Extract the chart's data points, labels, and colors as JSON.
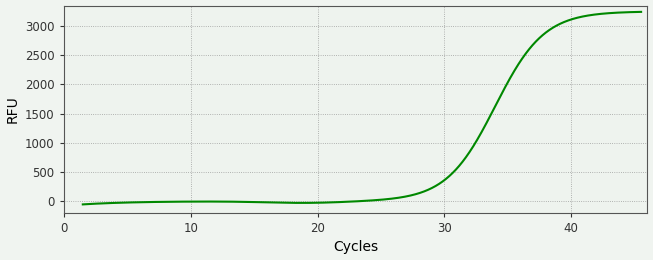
{
  "title": "",
  "xlabel": "Cycles",
  "ylabel": "RFU",
  "line_color": "#008800",
  "background_color": "#f0f4f0",
  "plot_background_color": "#eef3ee",
  "grid_color": "#888888",
  "xlim": [
    0,
    46
  ],
  "ylim": [
    -200,
    3350
  ],
  "xticks": [
    0,
    10,
    20,
    30,
    40
  ],
  "yticks": [
    0,
    500,
    1000,
    1500,
    2000,
    2500,
    3000
  ],
  "figsize": [
    6.53,
    2.6
  ],
  "dpi": 100,
  "sigmoid_L": 3250,
  "sigmoid_k": 0.52,
  "sigmoid_x0": 34.0,
  "x_start": 1.5,
  "x_end": 45.5,
  "line_width": 1.5
}
